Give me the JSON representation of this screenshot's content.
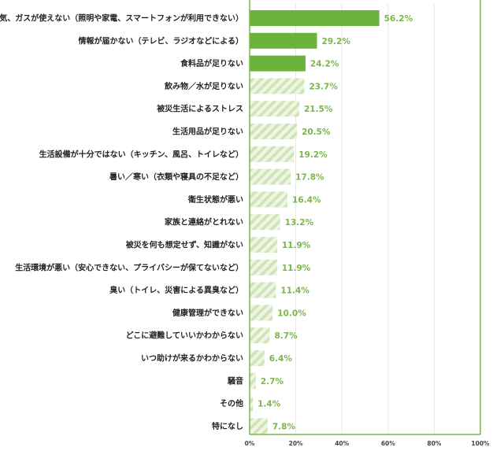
{
  "chart_data": {
    "type": "bar",
    "orientation": "horizontal",
    "categories": [
      "電気、ガスが使えない（照明や家電、スマートフォンが利用できない）",
      "情報が届かない（テレビ、ラジオなどによる）",
      "食料品が足りない",
      "飲み物／水が足りない",
      "被災生活によるストレス",
      "生活用品が足りない",
      "生活設備が十分ではない（キッチン、風呂、トイレなど）",
      "暑い／寒い（衣類や寝具の不足など）",
      "衛生状態が悪い",
      "家族と連絡がとれない",
      "被災を何も想定せず、知識がない",
      "生活環境が悪い（安心できない、プライバシーが保てないなど）",
      "臭い（トイレ、災害による異臭など）",
      "健康管理ができない",
      "どこに避難していいかわからない",
      "いつ助けが来るかわからない",
      "騒音",
      "その他",
      "特になし"
    ],
    "values": [
      56.2,
      29.2,
      24.2,
      23.7,
      21.5,
      20.5,
      19.2,
      17.8,
      16.4,
      13.2,
      11.9,
      11.9,
      11.4,
      10.0,
      8.7,
      6.4,
      2.7,
      1.4,
      7.8
    ],
    "value_labels": [
      "56.2%",
      "29.2%",
      "24.2%",
      "23.7%",
      "21.5%",
      "20.5%",
      "19.2%",
      "17.8%",
      "16.4%",
      "13.2%",
      "11.9%",
      "11.9%",
      "11.4%",
      "10.0%",
      "8.7%",
      "6.4%",
      "2.7%",
      "1.4%",
      "7.8%"
    ],
    "highlighted_count": 3,
    "xlim": [
      0,
      100
    ],
    "x_ticks": [
      0,
      20,
      40,
      60,
      80,
      100
    ],
    "x_tick_labels": [
      "0%",
      "20%",
      "40%",
      "60%",
      "80%",
      "100%"
    ],
    "grid": true,
    "colors": {
      "highlight": "#6ab43e",
      "stripe_fg": "#cfe3b4",
      "stripe_bg": "#eef5e4",
      "value_text": "#7ab648",
      "axis": "#7ab648",
      "grid": "#e6e6e6"
    }
  }
}
